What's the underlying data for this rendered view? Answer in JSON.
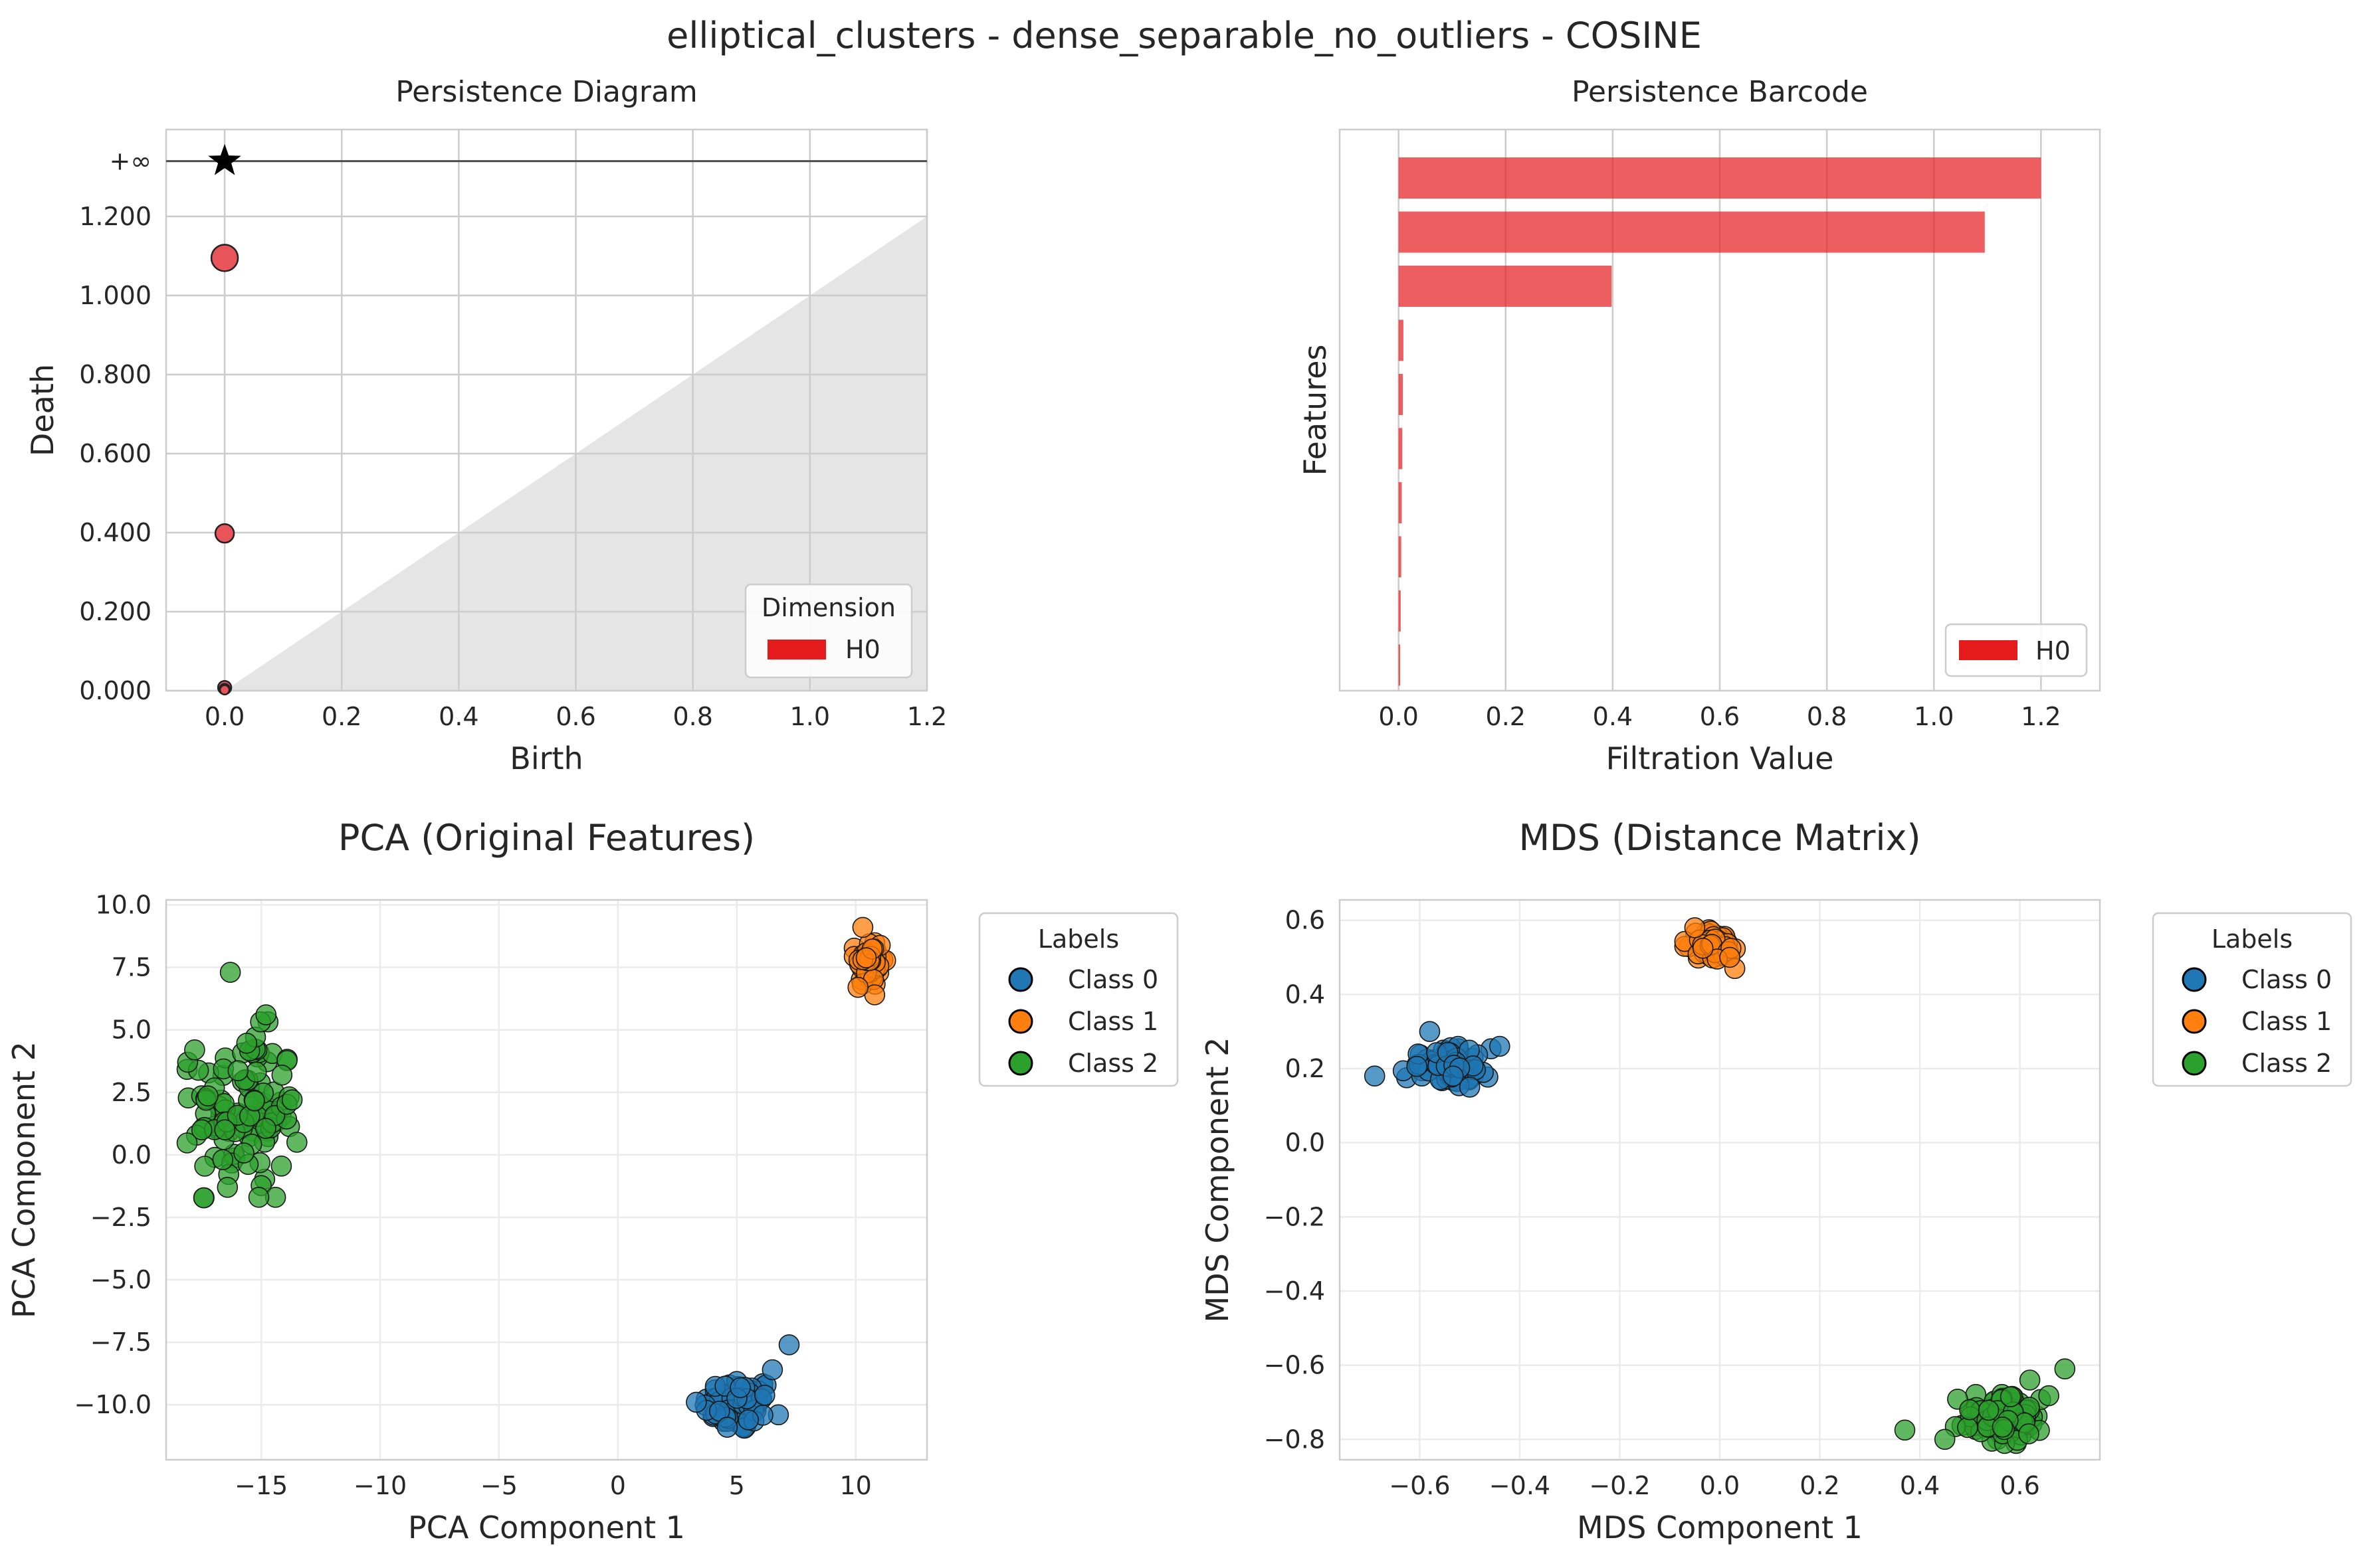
{
  "figure": {
    "suptitle": "elliptical_clusters - dense_separable_no_outliers - COSINE"
  },
  "colors": {
    "h0_red": "#e41a1c",
    "point_red": "#e8545a",
    "diagonal_fill": "#e5e5e5",
    "grid": "#cccccc",
    "class0": "#1f77b4",
    "class1": "#ff7f0e",
    "class2": "#2ca02c"
  },
  "chart_data": [
    {
      "id": "persistence_diagram",
      "type": "scatter",
      "title": "Persistence Diagram",
      "xlabel": "Birth",
      "ylabel": "Death",
      "xlim": [
        -0.1,
        1.2
      ],
      "ylim": [
        0,
        1.42
      ],
      "xticks": [
        "0.0",
        "0.2",
        "0.4",
        "0.6",
        "0.8",
        "1.0",
        "1.2"
      ],
      "yticks": [
        "0.000",
        "0.200",
        "0.400",
        "0.600",
        "0.800",
        "1.000",
        "1.200",
        "+∞"
      ],
      "infinity_label": "+∞",
      "grid": true,
      "legend": {
        "title": "Dimension",
        "entries": [
          "H0"
        ],
        "position": "lower right"
      },
      "series": [
        {
          "name": "H0",
          "points": [
            [
              0.0,
              1.095
            ],
            [
              0.0,
              0.398
            ],
            [
              0.0,
              0.008
            ],
            [
              0.0,
              0.004
            ],
            [
              0.0,
              0.002
            ]
          ],
          "infinite_points": [
            [
              0.0,
              "inf"
            ]
          ]
        }
      ]
    },
    {
      "id": "persistence_barcode",
      "type": "bar",
      "title": "Persistence Barcode",
      "xlabel": "Filtration Value",
      "ylabel": "Features",
      "xlim": [
        -0.11,
        1.31
      ],
      "xticks": [
        "0.0",
        "0.2",
        "0.4",
        "0.6",
        "0.8",
        "1.0",
        "1.2"
      ],
      "grid": true,
      "legend": {
        "entries": [
          "H0"
        ],
        "position": "lower right"
      },
      "bars": [
        {
          "birth": 0.0,
          "death": 1.2
        },
        {
          "birth": 0.0,
          "death": 1.095
        },
        {
          "birth": 0.0,
          "death": 0.398
        },
        {
          "birth": 0.0,
          "death": 0.009
        },
        {
          "birth": 0.0,
          "death": 0.008
        },
        {
          "birth": 0.0,
          "death": 0.007
        },
        {
          "birth": 0.0,
          "death": 0.006
        },
        {
          "birth": 0.0,
          "death": 0.005
        },
        {
          "birth": 0.0,
          "death": 0.004
        },
        {
          "birth": 0.0,
          "death": 0.003
        }
      ]
    },
    {
      "id": "pca",
      "type": "scatter",
      "title": "PCA (Original Features)",
      "xlabel": "PCA Component 1",
      "ylabel": "PCA Component 2",
      "xlim": [
        -19,
        13
      ],
      "ylim": [
        -12.2,
        10.2
      ],
      "xticks": [
        -15,
        -10,
        -5,
        0,
        5,
        10
      ],
      "yticks": [
        -10.0,
        -7.5,
        -5.0,
        -2.5,
        0.0,
        2.5,
        5.0,
        7.5,
        10.0
      ],
      "grid": true,
      "legend": {
        "title": "Labels",
        "entries": [
          "Class 0",
          "Class 1",
          "Class 2"
        ],
        "position": "outside upper right"
      },
      "series": [
        {
          "name": "Class 0",
          "center": [
            5.1,
            -10.0
          ],
          "spread": [
            0.75,
            0.55
          ],
          "count": 80,
          "extremes": [
            [
              7.2,
              -7.6
            ],
            [
              6.5,
              -8.6
            ],
            [
              3.3,
              -9.9
            ],
            [
              4.6,
              -10.9
            ]
          ]
        },
        {
          "name": "Class 1",
          "center": [
            10.6,
            7.7
          ],
          "spread": [
            0.3,
            0.5
          ],
          "count": 60,
          "extremes": [
            [
              10.3,
              9.1
            ],
            [
              10.8,
              6.4
            ],
            [
              10.1,
              6.7
            ]
          ]
        },
        {
          "name": "Class 2",
          "center": [
            -15.7,
            1.8
          ],
          "spread": [
            1.1,
            1.6
          ],
          "count": 110,
          "extremes": [
            [
              -16.3,
              7.3
            ],
            [
              -14.8,
              5.6
            ],
            [
              -17.8,
              4.2
            ],
            [
              -17.5,
              1.0
            ],
            [
              -13.7,
              2.2
            ],
            [
              -14.4,
              -1.7
            ],
            [
              -15.1,
              -1.7
            ],
            [
              -13.5,
              0.5
            ]
          ]
        }
      ]
    },
    {
      "id": "mds",
      "type": "scatter",
      "title": "MDS (Distance Matrix)",
      "xlabel": "MDS Component 1",
      "ylabel": "MDS Component 2",
      "xlim": [
        -0.76,
        0.76
      ],
      "ylim": [
        -0.855,
        0.655
      ],
      "xticks": [
        -0.6,
        -0.4,
        -0.2,
        0.0,
        0.2,
        0.4,
        0.6
      ],
      "yticks": [
        -0.8,
        -0.6,
        -0.4,
        -0.2,
        0.0,
        0.2,
        0.4,
        0.6
      ],
      "grid": true,
      "legend": {
        "title": "Labels",
        "entries": [
          "Class 0",
          "Class 1",
          "Class 2"
        ],
        "position": "outside upper right"
      },
      "series": [
        {
          "name": "Class 0",
          "center": [
            -0.545,
            0.205
          ],
          "spread": [
            0.04,
            0.025
          ],
          "count": 80,
          "extremes": [
            [
              -0.69,
              0.18
            ],
            [
              -0.58,
              0.3
            ],
            [
              -0.44,
              0.26
            ],
            [
              -0.5,
              0.15
            ]
          ]
        },
        {
          "name": "Class 1",
          "center": [
            -0.015,
            0.535
          ],
          "spread": [
            0.025,
            0.018
          ],
          "count": 60,
          "extremes": [
            [
              -0.05,
              0.58
            ],
            [
              0.03,
              0.47
            ],
            [
              0.02,
              0.5
            ]
          ]
        },
        {
          "name": "Class 2",
          "center": [
            0.57,
            -0.745
          ],
          "spread": [
            0.045,
            0.03
          ],
          "count": 110,
          "extremes": [
            [
              0.69,
              -0.61
            ],
            [
              0.37,
              -0.775
            ],
            [
              0.62,
              -0.64
            ],
            [
              0.45,
              -0.8
            ]
          ]
        }
      ]
    }
  ]
}
